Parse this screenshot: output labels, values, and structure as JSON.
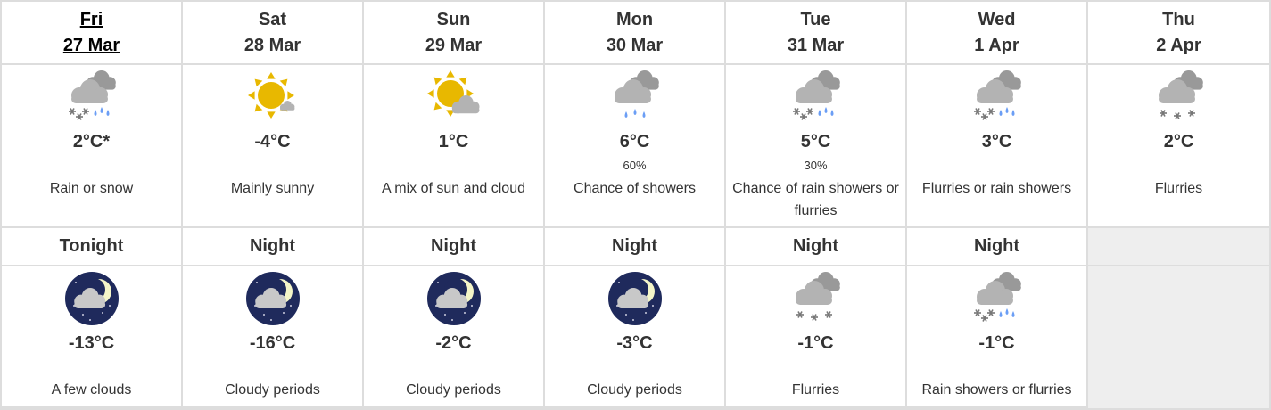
{
  "days": [
    {
      "name": "Fri",
      "date": "27 Mar",
      "today": true,
      "icon": "rain-snow",
      "temp": "2°C*",
      "pop": "",
      "desc": "Rain or snow"
    },
    {
      "name": "Sat",
      "date": "28 Mar",
      "icon": "sun-small-cloud",
      "temp": "-4°C",
      "pop": "",
      "desc": "Mainly sunny"
    },
    {
      "name": "Sun",
      "date": "29 Mar",
      "icon": "sun-cloud",
      "temp": "1°C",
      "pop": "",
      "desc": "A mix of sun and cloud"
    },
    {
      "name": "Mon",
      "date": "30 Mar",
      "icon": "showers",
      "temp": "6°C",
      "pop": "60%",
      "desc": "Chance of showers"
    },
    {
      "name": "Tue",
      "date": "31 Mar",
      "icon": "rain-snow",
      "temp": "5°C",
      "pop": "30%",
      "desc": "Chance of rain showers or flurries"
    },
    {
      "name": "Wed",
      "date": "1 Apr",
      "icon": "rain-snow",
      "temp": "3°C",
      "pop": "",
      "desc": "Flurries or rain showers"
    },
    {
      "name": "Thu",
      "date": "2 Apr",
      "icon": "flurries",
      "temp": "2°C",
      "pop": "",
      "desc": "Flurries"
    }
  ],
  "nights": [
    {
      "label": "Tonight",
      "icon": "night-clouds",
      "temp": "-13°C",
      "desc": "A few clouds"
    },
    {
      "label": "Night",
      "icon": "night-clouds",
      "temp": "-16°C",
      "desc": "Cloudy periods"
    },
    {
      "label": "Night",
      "icon": "night-clouds",
      "temp": "-2°C",
      "desc": "Cloudy periods"
    },
    {
      "label": "Night",
      "icon": "night-clouds",
      "temp": "-3°C",
      "desc": "Cloudy periods"
    },
    {
      "label": "Night",
      "icon": "flurries",
      "temp": "-1°C",
      "desc": "Flurries"
    },
    {
      "label": "Night",
      "icon": "rain-snow",
      "temp": "-1°C",
      "desc": "Rain showers or flurries"
    }
  ],
  "colors": {
    "border": "#dddddd",
    "sun": "#e8b800",
    "cloud": "#b3b3b3",
    "rain": "#6b9ef5",
    "night": "#1f2a5c"
  }
}
